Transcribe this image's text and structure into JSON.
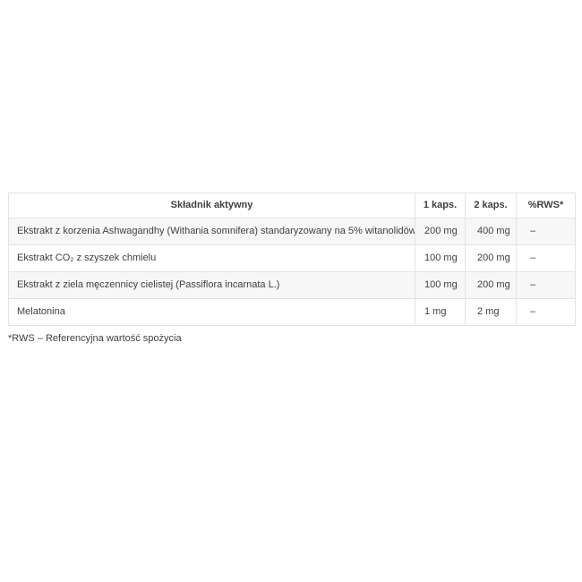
{
  "table": {
    "columns": [
      {
        "label": "Składnik aktywny"
      },
      {
        "label": "1 kaps."
      },
      {
        "label": "2 kaps."
      },
      {
        "label": "%RWS*"
      }
    ],
    "rows": [
      {
        "ingredient": "Ekstrakt z korzenia Ashwagandhy (Withania somnifera) standaryzowany na 5% witanolidów",
        "per_1_caps": "200 mg",
        "per_2_caps": "400 mg",
        "rws": "–"
      },
      {
        "ingredient": "Ekstrakt CO₂ z szyszek chmielu",
        "per_1_caps": "100 mg",
        "per_2_caps": "200 mg",
        "rws": "–"
      },
      {
        "ingredient": "Ekstrakt z ziela męczennicy cielistej (Passiflora incarnata L.)",
        "per_1_caps": "100 mg",
        "per_2_caps": "200 mg",
        "rws": "–"
      },
      {
        "ingredient": "Melatonina",
        "per_1_caps": "1 mg",
        "per_2_caps": "2 mg",
        "rws": "–"
      }
    ]
  },
  "footnote": "*RWS – Referencyjna wartość spożycia",
  "colors": {
    "text": "#3f3f3f",
    "border": "#e3e3e3",
    "stripe": "#f7f7f7",
    "background": "#ffffff"
  }
}
